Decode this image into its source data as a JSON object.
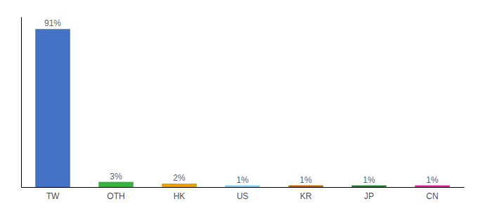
{
  "chart_data": {
    "type": "bar",
    "categories": [
      "TW",
      "OTH",
      "HK",
      "US",
      "KR",
      "JP",
      "CN"
    ],
    "values": [
      91,
      3,
      2,
      1,
      1,
      1,
      1
    ],
    "value_labels": [
      "91%",
      "3%",
      "2%",
      "1%",
      "1%",
      "1%",
      "1%"
    ],
    "colors": [
      "#4472c4",
      "#3cb043",
      "#e8a000",
      "#87ceeb",
      "#b86800",
      "#2e7d32",
      "#e91e8c"
    ],
    "ylim": [
      0,
      98
    ],
    "data_labels": true,
    "tick_labels": "x"
  }
}
